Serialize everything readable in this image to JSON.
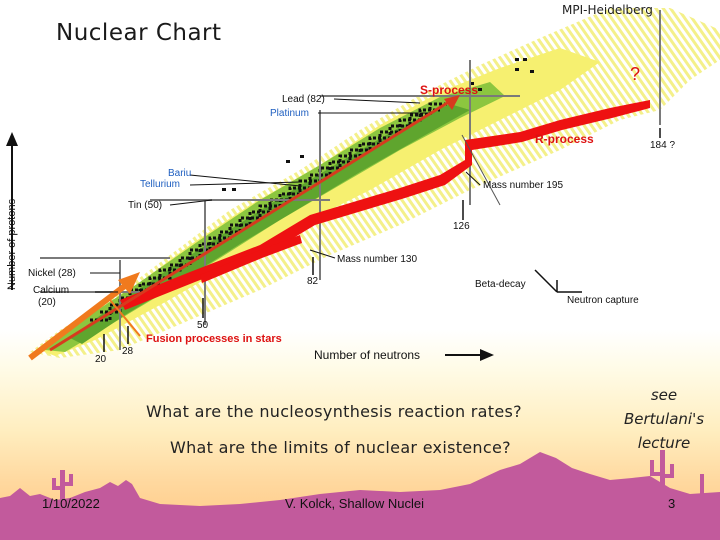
{
  "slide": {
    "title": "Nuclear Chart",
    "institute": "MPI-Heidelberg",
    "questions": [
      "What are the nucleosynthesis reaction rates?",
      "What are the limits of nuclear existence?"
    ],
    "side_note": [
      "see",
      "Bertulani's",
      "lecture"
    ],
    "footer": {
      "date": "1/10/2022",
      "center": "V. Kolck, Shallow Nuclei",
      "page": "3"
    }
  },
  "chart": {
    "y_axis_label": "Number of protons",
    "x_axis_label": "Number of neutrons",
    "question_mark": "?",
    "labels": {
      "s_process": "S-process",
      "r_process": "R-process",
      "lead": "Lead (82)",
      "platinum": "Platinum",
      "barium": "Bariu",
      "tellurium": "Tellurium",
      "tin": "Tin (50)",
      "nickel": "Nickel (28)",
      "calcium": "Calcium",
      "calcium_z": "(20)",
      "mass_195": "Mass number 195",
      "mass_130": "Mass number 130",
      "n184": "184 ?",
      "n126": "126",
      "n82": "82",
      "n50": "50",
      "n28": "28",
      "n20": "20",
      "beta_decay": "Beta-decay",
      "neutron_capture": "Neutron capture",
      "fusion": "Fusion processes in stars"
    },
    "colors": {
      "stable_band": "#8cc63f",
      "outer_band": "#f4f08a",
      "r_process": "#ee1111",
      "s_process": "#d73a1e",
      "fusion_arrow": "#f07a1e",
      "label_blue": "#1f5fc0",
      "label_red": "#dd1111"
    }
  }
}
